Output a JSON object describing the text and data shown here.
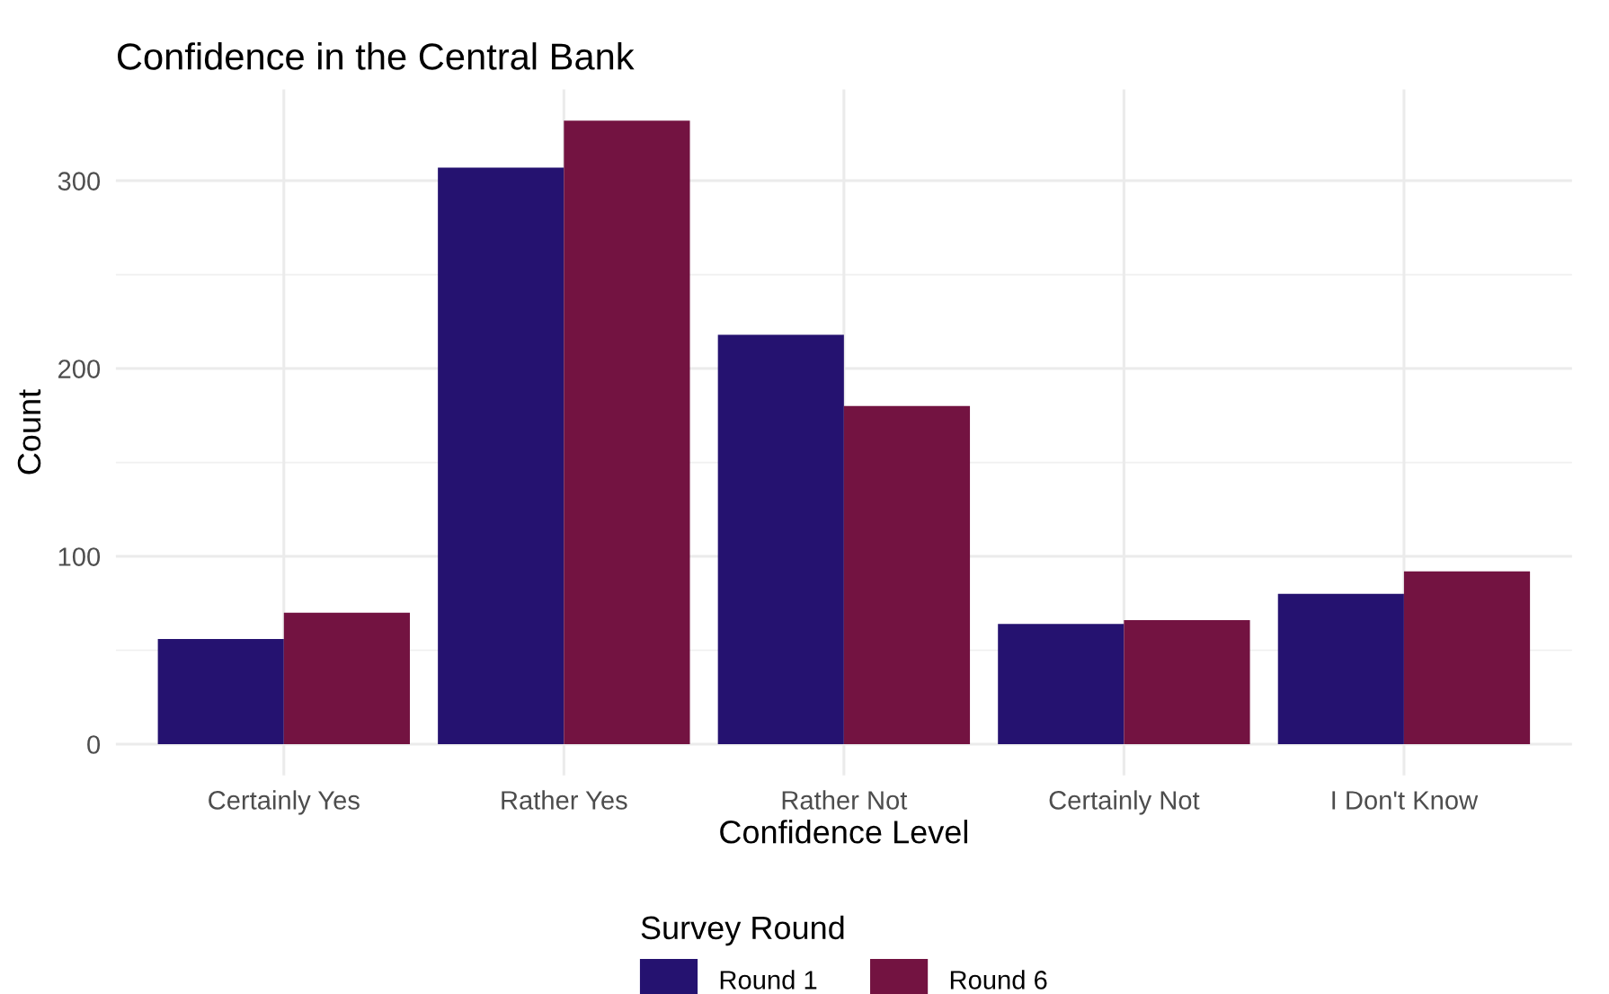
{
  "chart_data": {
    "type": "bar",
    "title": "Confidence in the Central Bank",
    "xlabel": "Confidence Level",
    "ylabel": "Count",
    "legend_title": "Survey Round",
    "categories": [
      "Certainly Yes",
      "Rather Yes",
      "Rather Not",
      "Certainly Not",
      "I Don't Know"
    ],
    "series": [
      {
        "name": "Round 1",
        "color": "#251270",
        "values": [
          56,
          307,
          218,
          64,
          80
        ]
      },
      {
        "name": "Round 6",
        "color": "#731341",
        "values": [
          70,
          332,
          180,
          66,
          92
        ]
      }
    ],
    "ylim": [
      -16.6,
      348.6
    ],
    "yticks": [
      0,
      100,
      200,
      300
    ],
    "grid": true,
    "legend": "bottom"
  }
}
